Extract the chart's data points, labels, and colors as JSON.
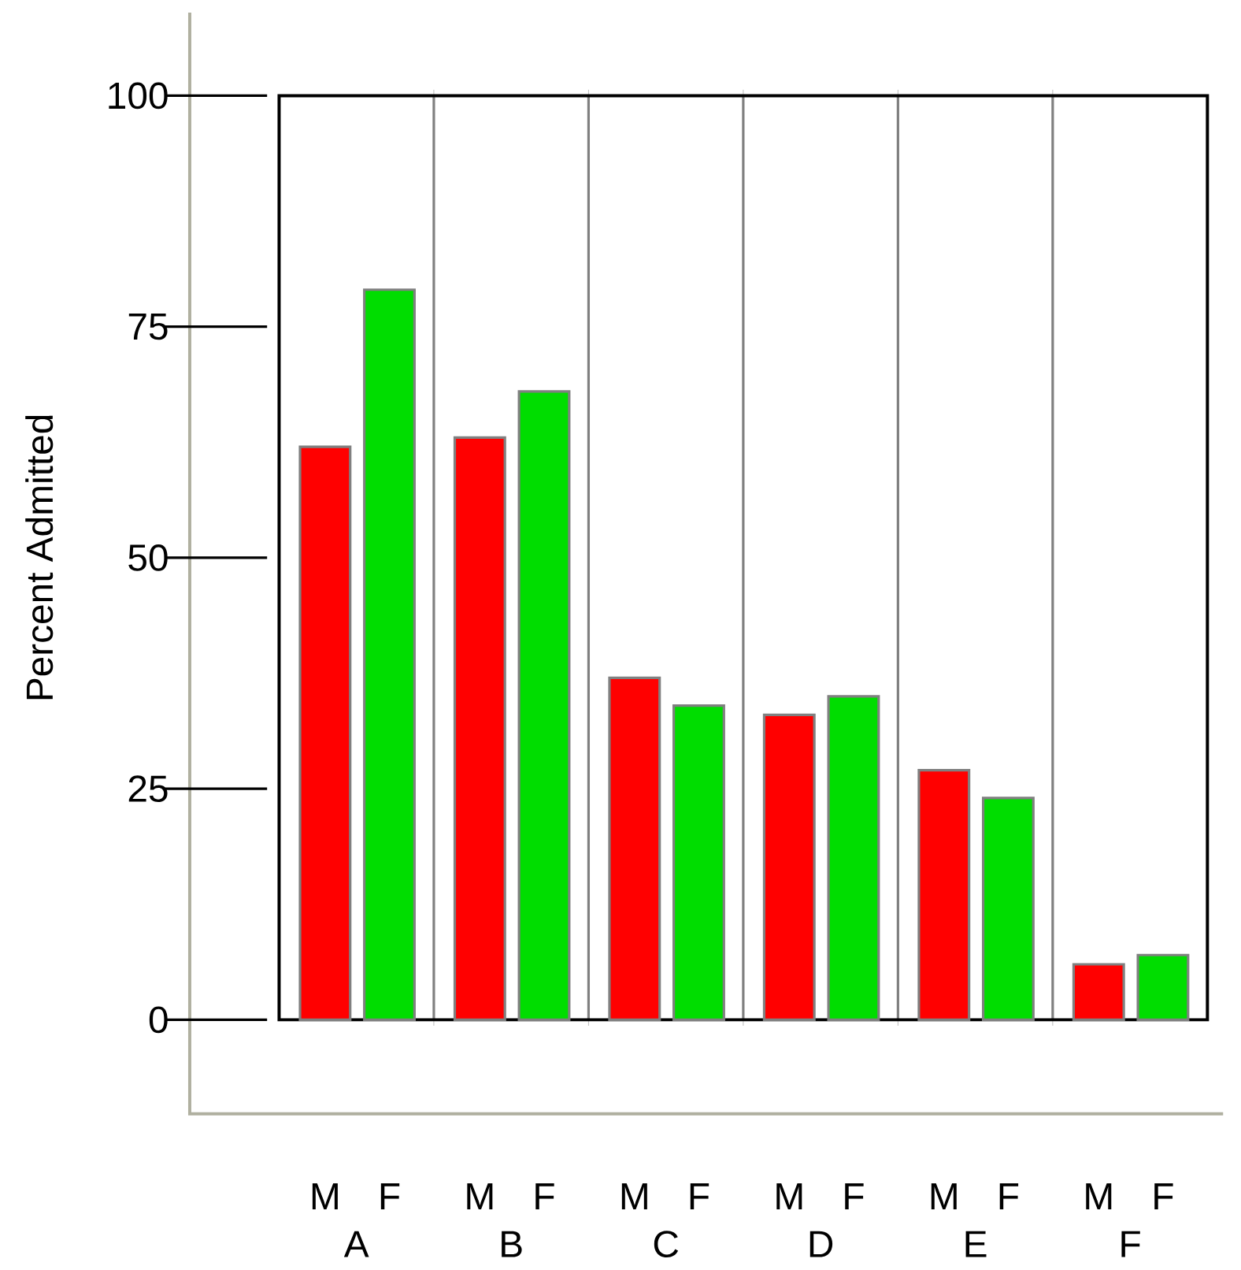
{
  "chart_data": {
    "type": "bar",
    "ylabel": "Percent Admitted",
    "categories": [
      "M",
      "F",
      "M",
      "F",
      "M",
      "F",
      "M",
      "F",
      "M",
      "F",
      "M",
      "F"
    ],
    "values": [
      62,
      79,
      63,
      68,
      37,
      34,
      33,
      35,
      27,
      24,
      6,
      7
    ],
    "colors": [
      "#ff0000",
      "#00dd00",
      "#ff0000",
      "#00dd00",
      "#ff0000",
      "#00dd00",
      "#ff0000",
      "#00dd00",
      "#ff0000",
      "#00dd00",
      "#ff0000",
      "#00dd00"
    ],
    "annotations": [
      "A",
      "B",
      "C",
      "D",
      "E",
      "F"
    ],
    "ylim": [
      0,
      100
    ],
    "yticks": [
      0,
      25,
      50,
      75,
      100
    ],
    "grid": "x"
  }
}
